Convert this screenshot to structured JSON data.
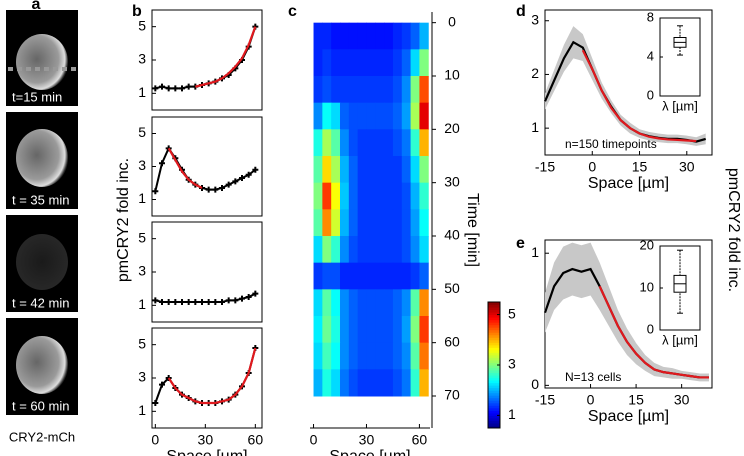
{
  "panel_labels": [
    "a",
    "b",
    "c",
    "d",
    "e"
  ],
  "panel_a": {
    "frames": [
      "t=15 min",
      "t = 35 min",
      "t = 42 min",
      "t = 60 min"
    ],
    "caption": "CRY2-mCh"
  },
  "labels": {
    "b_y": "pmCRY2 fold inc.",
    "de_y": "pmCRY2 fold inc."
  },
  "chart_data": [
    {
      "type": "line",
      "x": [
        0,
        4,
        8,
        12,
        16,
        20,
        24,
        28,
        32,
        36,
        40,
        44,
        48,
        52,
        56,
        60
      ],
      "xlim": [
        -2,
        64
      ],
      "ylim": [
        0,
        6
      ],
      "yticks": [
        1,
        3,
        5
      ],
      "series": [
        {
          "color": "#000000",
          "markers": true,
          "values": [
            1.3,
            1.4,
            1.3,
            1.3,
            1.3,
            1.4,
            1.4,
            1.5,
            1.6,
            1.7,
            1.9,
            2.1,
            2.5,
            3.0,
            3.8,
            5.0
          ]
        },
        {
          "color": "#e0191e",
          "values": [
            null,
            null,
            null,
            null,
            null,
            null,
            1.4,
            1.5,
            1.6,
            1.7,
            1.9,
            2.2,
            2.6,
            3.1,
            3.9,
            5.0
          ]
        }
      ]
    },
    {
      "type": "line",
      "x": [
        0,
        4,
        8,
        12,
        16,
        20,
        24,
        28,
        32,
        36,
        40,
        44,
        48,
        52,
        56,
        60
      ],
      "xlim": [
        -2,
        64
      ],
      "ylim": [
        0,
        6
      ],
      "yticks": [
        1,
        3,
        5
      ],
      "series": [
        {
          "color": "#000000",
          "markers": true,
          "values": [
            1.5,
            3.2,
            4.1,
            3.5,
            2.8,
            2.2,
            1.9,
            1.7,
            1.6,
            1.6,
            1.7,
            1.9,
            2.1,
            2.3,
            2.5,
            2.8
          ]
        },
        {
          "color": "#e0191e",
          "values": [
            null,
            null,
            4.1,
            3.4,
            2.7,
            2.2,
            1.9,
            1.7,
            null,
            null,
            null,
            null,
            null,
            null,
            null,
            null
          ]
        }
      ]
    },
    {
      "type": "line",
      "x": [
        0,
        4,
        8,
        12,
        16,
        20,
        24,
        28,
        32,
        36,
        40,
        44,
        48,
        52,
        56,
        60
      ],
      "xlim": [
        -2,
        64
      ],
      "ylim": [
        0,
        6
      ],
      "yticks": [
        1,
        3,
        5
      ],
      "series": [
        {
          "color": "#000000",
          "markers": true,
          "values": [
            1.3,
            1.2,
            1.2,
            1.2,
            1.2,
            1.2,
            1.2,
            1.2,
            1.2,
            1.2,
            1.2,
            1.3,
            1.3,
            1.4,
            1.5,
            1.7
          ]
        }
      ]
    },
    {
      "type": "line",
      "x": [
        0,
        4,
        8,
        12,
        16,
        20,
        24,
        28,
        32,
        36,
        40,
        44,
        48,
        52,
        56,
        60
      ],
      "xlim": [
        -2,
        64
      ],
      "ylim": [
        0,
        6
      ],
      "yticks": [
        1,
        3,
        5
      ],
      "xticks": [
        0,
        30,
        60
      ],
      "xlabel": "Space [µm]",
      "series": [
        {
          "color": "#000000",
          "markers": true,
          "values": [
            1.5,
            2.6,
            3.0,
            2.4,
            2.0,
            1.8,
            1.6,
            1.5,
            1.5,
            1.5,
            1.6,
            1.7,
            2.0,
            2.5,
            3.3,
            4.8
          ]
        },
        {
          "color": "#e0191e",
          "values": [
            null,
            null,
            3.0,
            2.4,
            2.0,
            1.8,
            1.6,
            1.5,
            1.5,
            1.5,
            1.6,
            1.7,
            2.0,
            2.5,
            3.3,
            4.8
          ]
        }
      ]
    },
    {
      "type": "heatmap",
      "x": [
        0,
        5,
        10,
        15,
        20,
        25,
        30,
        35,
        40,
        45,
        50,
        55,
        60
      ],
      "y": [
        0,
        5,
        10,
        15,
        20,
        25,
        30,
        35,
        40,
        45,
        50,
        55,
        60,
        65
      ],
      "xlim": [
        -2,
        66
      ],
      "ylim": [
        -2,
        76
      ],
      "xticks": [
        0,
        30,
        60
      ],
      "yticks": [
        0,
        10,
        20,
        30,
        40,
        50,
        60,
        70
      ],
      "xlabel": "Space [µm]",
      "ylabel": "Time [min]",
      "zlim": [
        0.5,
        5.5
      ],
      "zticks": [
        1,
        3,
        5
      ],
      "z": [
        [
          1.3,
          1.3,
          1.2,
          1.2,
          1.2,
          1.2,
          1.2,
          1.2,
          1.2,
          1.3,
          1.4,
          1.6,
          2.0
        ],
        [
          1.3,
          1.4,
          1.3,
          1.3,
          1.3,
          1.3,
          1.3,
          1.3,
          1.3,
          1.4,
          1.6,
          2.2,
          3.0
        ],
        [
          1.4,
          1.5,
          1.4,
          1.4,
          1.4,
          1.4,
          1.4,
          1.4,
          1.4,
          1.5,
          1.8,
          3.0,
          4.5
        ],
        [
          1.8,
          2.4,
          2.2,
          1.6,
          1.5,
          1.5,
          1.5,
          1.5,
          1.5,
          1.6,
          1.9,
          3.2,
          5.0
        ],
        [
          2.5,
          3.2,
          2.8,
          1.8,
          1.5,
          1.4,
          1.4,
          1.4,
          1.4,
          1.5,
          1.7,
          2.6,
          4.0
        ],
        [
          2.8,
          3.8,
          3.2,
          2.0,
          1.6,
          1.4,
          1.4,
          1.4,
          1.4,
          1.4,
          1.6,
          2.2,
          3.0
        ],
        [
          3.0,
          4.6,
          3.6,
          2.1,
          1.6,
          1.4,
          1.4,
          1.4,
          1.4,
          1.4,
          1.5,
          2.0,
          2.6
        ],
        [
          2.8,
          4.2,
          3.4,
          2.0,
          1.6,
          1.4,
          1.4,
          1.4,
          1.4,
          1.4,
          1.5,
          1.9,
          2.4
        ],
        [
          2.2,
          3.0,
          2.6,
          1.8,
          1.5,
          1.4,
          1.4,
          1.4,
          1.4,
          1.4,
          1.5,
          1.8,
          2.2
        ],
        [
          1.4,
          1.5,
          1.5,
          1.3,
          1.3,
          1.3,
          1.3,
          1.3,
          1.3,
          1.3,
          1.3,
          1.4,
          1.6
        ],
        [
          2.2,
          2.8,
          2.4,
          1.8,
          1.6,
          1.5,
          1.5,
          1.5,
          1.5,
          1.6,
          1.8,
          2.8,
          4.2
        ],
        [
          2.3,
          2.9,
          2.5,
          1.8,
          1.6,
          1.5,
          1.5,
          1.5,
          1.5,
          1.6,
          1.9,
          3.0,
          4.6
        ],
        [
          2.2,
          2.7,
          2.4,
          1.8,
          1.6,
          1.5,
          1.5,
          1.5,
          1.5,
          1.6,
          1.8,
          2.8,
          4.3
        ],
        [
          2.0,
          2.5,
          2.2,
          1.7,
          1.5,
          1.4,
          1.4,
          1.4,
          1.4,
          1.5,
          1.7,
          2.6,
          4.0
        ]
      ]
    },
    {
      "type": "line",
      "x": [
        -15,
        -12,
        -9,
        -6,
        -3,
        0,
        3,
        6,
        9,
        12,
        15,
        18,
        21,
        24,
        27,
        30,
        33,
        36
      ],
      "xlim": [
        -15,
        38
      ],
      "ylim": [
        0.5,
        3.2
      ],
      "yticks": [
        1,
        2,
        3
      ],
      "xticks": [
        -15,
        0,
        15,
        30
      ],
      "xlabel": "Space [µm]",
      "annotation": "n=150 timepoints",
      "series": [
        {
          "color": "#000000",
          "values": [
            1.5,
            1.9,
            2.3,
            2.6,
            2.5,
            2.1,
            1.7,
            1.4,
            1.15,
            1.0,
            0.9,
            0.85,
            0.82,
            0.8,
            0.8,
            0.78,
            0.75,
            0.8
          ],
          "errors": [
            0.15,
            0.2,
            0.25,
            0.3,
            0.25,
            0.2,
            0.15,
            0.12,
            0.1,
            0.1,
            0.08,
            0.08,
            0.08,
            0.08,
            0.08,
            0.08,
            0.08,
            0.1
          ]
        },
        {
          "color": "#e0191e",
          "values": [
            null,
            null,
            null,
            null,
            2.45,
            2.1,
            1.7,
            1.38,
            1.15,
            1.0,
            0.9,
            0.84,
            0.81,
            0.79,
            0.78,
            0.77,
            0.76,
            null
          ]
        }
      ]
    },
    {
      "type": "box",
      "ylim": [
        0,
        8
      ],
      "yticks": [
        0,
        4,
        8
      ],
      "xlabel": "λ [µm]",
      "box": {
        "whisker_low": 4.2,
        "q1": 5.0,
        "median": 5.5,
        "q3": 6.0,
        "whisker_high": 7.2
      }
    },
    {
      "type": "line",
      "x": [
        -15,
        -12,
        -9,
        -6,
        -3,
        0,
        3,
        6,
        9,
        12,
        15,
        18,
        21,
        24,
        27,
        30,
        33,
        36,
        39
      ],
      "xlim": [
        -15,
        40
      ],
      "ylim": [
        -0.02,
        1.1
      ],
      "yticks": [
        0,
        1
      ],
      "xticks": [
        -15,
        0,
        15,
        30
      ],
      "xlabel": "Space [µm]",
      "annotation": "N=13 cells",
      "series": [
        {
          "color": "#000000",
          "values": [
            0.55,
            0.75,
            0.85,
            0.88,
            0.86,
            0.88,
            0.75,
            0.6,
            0.45,
            0.33,
            0.24,
            0.17,
            0.12,
            0.1,
            0.09,
            0.08,
            0.07,
            0.06,
            0.06
          ],
          "errors": [
            0.15,
            0.18,
            0.2,
            0.2,
            0.2,
            0.2,
            0.18,
            0.15,
            0.12,
            0.1,
            0.08,
            0.06,
            0.05,
            0.04,
            0.04,
            0.03,
            0.03,
            0.03,
            0.03
          ]
        },
        {
          "color": "#e0191e",
          "values": [
            null,
            null,
            null,
            null,
            null,
            null,
            0.75,
            0.6,
            0.45,
            0.33,
            0.24,
            0.17,
            0.12,
            0.1,
            0.09,
            0.08,
            0.07,
            0.06,
            0.06
          ]
        }
      ]
    },
    {
      "type": "box",
      "ylim": [
        0,
        20
      ],
      "yticks": [
        0,
        10,
        20
      ],
      "xlabel": "λ [µm]",
      "box": {
        "whisker_low": 4,
        "q1": 9,
        "median": 11,
        "q3": 13,
        "whisker_high": 19
      }
    }
  ]
}
